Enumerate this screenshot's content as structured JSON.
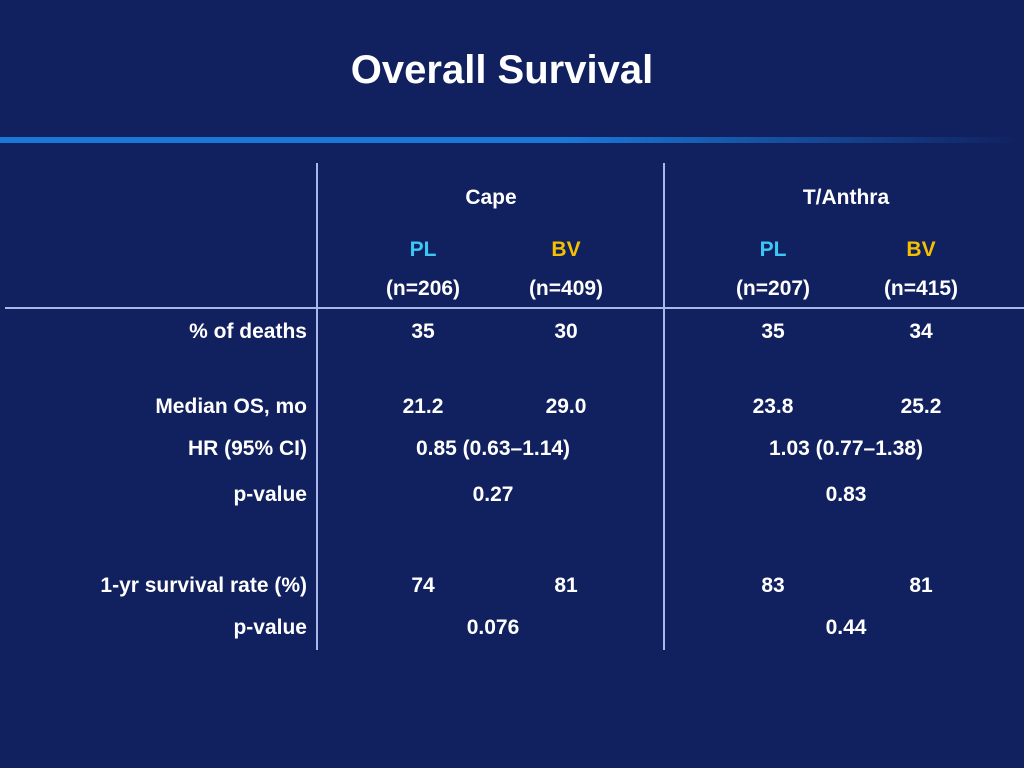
{
  "title": "Overall Survival",
  "colors": {
    "background": "#11205e",
    "rule": "#1a78d8",
    "pl": "#3cc8f5",
    "bv": "#f5c000"
  },
  "groups": [
    {
      "label": "Cape",
      "arms": [
        {
          "name": "PL",
          "n": "(n=206)"
        },
        {
          "name": "BV",
          "n": "(n=409)"
        }
      ]
    },
    {
      "label": "T/Anthra",
      "arms": [
        {
          "name": "PL",
          "n": "(n=207)"
        },
        {
          "name": "BV",
          "n": "(n=415)"
        }
      ]
    }
  ],
  "rows": {
    "deaths": {
      "label": "% of deaths",
      "values": [
        "35",
        "30",
        "35",
        "34"
      ]
    },
    "median_os": {
      "label": "Median OS, mo",
      "values": [
        "21.2",
        "29.0",
        "23.8",
        "25.2"
      ]
    },
    "hr": {
      "label": "HR (95% CI)",
      "values": [
        "0.85 (0.63–1.14)",
        "1.03 (0.77–1.38)"
      ]
    },
    "p_os": {
      "label": "p-value",
      "values": [
        "0.27",
        "0.83"
      ]
    },
    "surv1yr": {
      "label": "1-yr survival rate (%)",
      "values": [
        "74",
        "81",
        "83",
        "81"
      ]
    },
    "p_surv": {
      "label": "p-value",
      "values": [
        "0.076",
        "0.44"
      ]
    }
  }
}
